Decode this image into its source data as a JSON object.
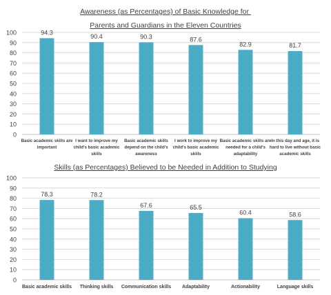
{
  "chart_data": [
    {
      "type": "bar",
      "title_line1": "Awareness (as Percentages) of Basic Knowledge for ",
      "title_line2": "Parents and Guardians in the Eleven Countries",
      "categories": [
        [
          "Basic academic skills are",
          "important"
        ],
        [
          "I want to improve my",
          "child's basic academic",
          "skills"
        ],
        [
          "Basic academic skills",
          "depend on the child's",
          "awareness"
        ],
        [
          "I work to improve my",
          "child's basic academic",
          "skills"
        ],
        [
          "Basic academic skills are",
          "needed for a child's",
          "adaptability"
        ],
        [
          "In this day and age, it is",
          "hard to live without basic",
          "academic skills"
        ]
      ],
      "values": [
        94.3,
        90.4,
        90.3,
        87.6,
        82.9,
        81.7
      ],
      "value_labels": [
        "94.3",
        "90.4",
        "90.3",
        "87.6",
        "82.9",
        "81.7"
      ],
      "ylim": [
        0,
        100
      ],
      "yticks": [
        "0",
        "10",
        "20",
        "30",
        "40",
        "50",
        "60",
        "70",
        "80",
        "90",
        "100"
      ],
      "grid": true,
      "bar_color": "#4bacc6"
    },
    {
      "type": "bar",
      "title": "Skills (as Percentages) Believed to be Needed in Addition to Studying",
      "categories": [
        [
          "Basic academic skills"
        ],
        [
          "Thinking skills"
        ],
        [
          "Communication skills"
        ],
        [
          "Adaptability"
        ],
        [
          "Actionability"
        ],
        [
          "Language skills"
        ]
      ],
      "values": [
        78.3,
        78.2,
        67.6,
        65.5,
        60.4,
        58.6
      ],
      "value_labels": [
        "78.3",
        "78.2",
        "67.6",
        "65.5",
        "60.4",
        "58.6"
      ],
      "ylim": [
        0,
        100
      ],
      "yticks": [
        "0",
        "10",
        "20",
        "30",
        "40",
        "50",
        "60",
        "70",
        "80",
        "90",
        "100"
      ],
      "grid": true,
      "bar_color": "#4bacc6"
    }
  ]
}
